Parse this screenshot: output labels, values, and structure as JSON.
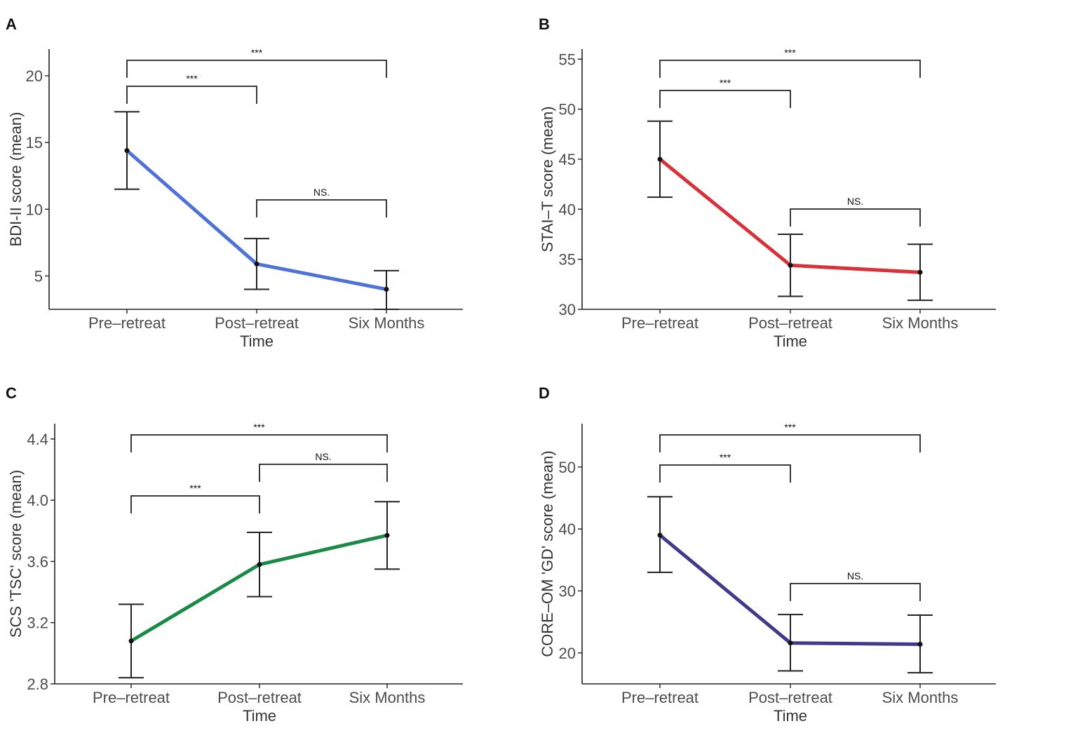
{
  "chart_data": [
    {
      "panel": "A",
      "type": "line",
      "categories": [
        "Pre–retreat",
        "Post–retreat",
        "Six Months"
      ],
      "xlabel": "Time",
      "ylabel": "BDI-II score (mean)",
      "ylim": [
        2.5,
        22
      ],
      "yticks": [
        5,
        10,
        15,
        20
      ],
      "color": "#4f72d8",
      "series": [
        {
          "values": [
            14.4,
            5.9,
            4.0
          ],
          "err_low": [
            11.5,
            4.0,
            2.5
          ],
          "err_high": [
            17.3,
            7.8,
            5.4
          ]
        }
      ],
      "comparisons": [
        {
          "from": 0,
          "to": 2,
          "label": "***",
          "level": 0
        },
        {
          "from": 0,
          "to": 1,
          "label": "***",
          "level": 1
        },
        {
          "from": 1,
          "to": 2,
          "label": "NS.",
          "level": 2
        }
      ]
    },
    {
      "panel": "B",
      "type": "line",
      "categories": [
        "Pre–retreat",
        "Post–retreat",
        "Six Months"
      ],
      "xlabel": "Time",
      "ylabel": "STAI–T score (mean)",
      "ylim": [
        30,
        56
      ],
      "yticks": [
        30,
        35,
        40,
        45,
        50,
        55
      ],
      "color": "#d9303a",
      "series": [
        {
          "values": [
            45.0,
            34.4,
            33.7
          ],
          "err_low": [
            41.2,
            31.3,
            30.9
          ],
          "err_high": [
            48.8,
            37.5,
            36.5
          ]
        }
      ],
      "comparisons": [
        {
          "from": 0,
          "to": 2,
          "label": "***",
          "level": 0
        },
        {
          "from": 0,
          "to": 1,
          "label": "***",
          "level": 1
        },
        {
          "from": 1,
          "to": 2,
          "label": "NS.",
          "level": 2
        }
      ]
    },
    {
      "panel": "C",
      "type": "line",
      "categories": [
        "Pre–retreat",
        "Post–retreat",
        "Six Months"
      ],
      "xlabel": "Time",
      "ylabel": "SCS 'TSC' score (mean)",
      "ylim": [
        2.8,
        4.5
      ],
      "yticks": [
        2.8,
        3.2,
        3.6,
        4.0,
        4.4
      ],
      "ytick_labels": [
        "2.8",
        "3.2",
        "3.6",
        "4.0",
        "4.4"
      ],
      "color": "#1a8a46",
      "series": [
        {
          "values": [
            3.08,
            3.58,
            3.77
          ],
          "err_low": [
            2.84,
            3.37,
            3.55
          ],
          "err_high": [
            3.32,
            3.79,
            3.99
          ]
        }
      ],
      "comparisons": [
        {
          "from": 0,
          "to": 2,
          "label": "***",
          "level": 0
        },
        {
          "from": 1,
          "to": 2,
          "label": "NS.",
          "level": 1
        },
        {
          "from": 0,
          "to": 1,
          "label": "***",
          "level": 2
        }
      ]
    },
    {
      "panel": "D",
      "type": "line",
      "categories": [
        "Pre–retreat",
        "Post–retreat",
        "Six Months"
      ],
      "xlabel": "Time",
      "ylabel": "CORE–OM 'GD' score (mean)",
      "ylim": [
        15,
        57
      ],
      "yticks": [
        20,
        30,
        40,
        50
      ],
      "color": "#3f3a8a",
      "series": [
        {
          "values": [
            39.0,
            21.6,
            21.4
          ],
          "err_low": [
            33.0,
            17.1,
            16.8
          ],
          "err_high": [
            45.2,
            26.2,
            26.1
          ]
        }
      ],
      "comparisons": [
        {
          "from": 0,
          "to": 2,
          "label": "***",
          "level": 0
        },
        {
          "from": 0,
          "to": 1,
          "label": "***",
          "level": 1
        },
        {
          "from": 1,
          "to": 2,
          "label": "NS.",
          "level": 2
        }
      ]
    }
  ]
}
